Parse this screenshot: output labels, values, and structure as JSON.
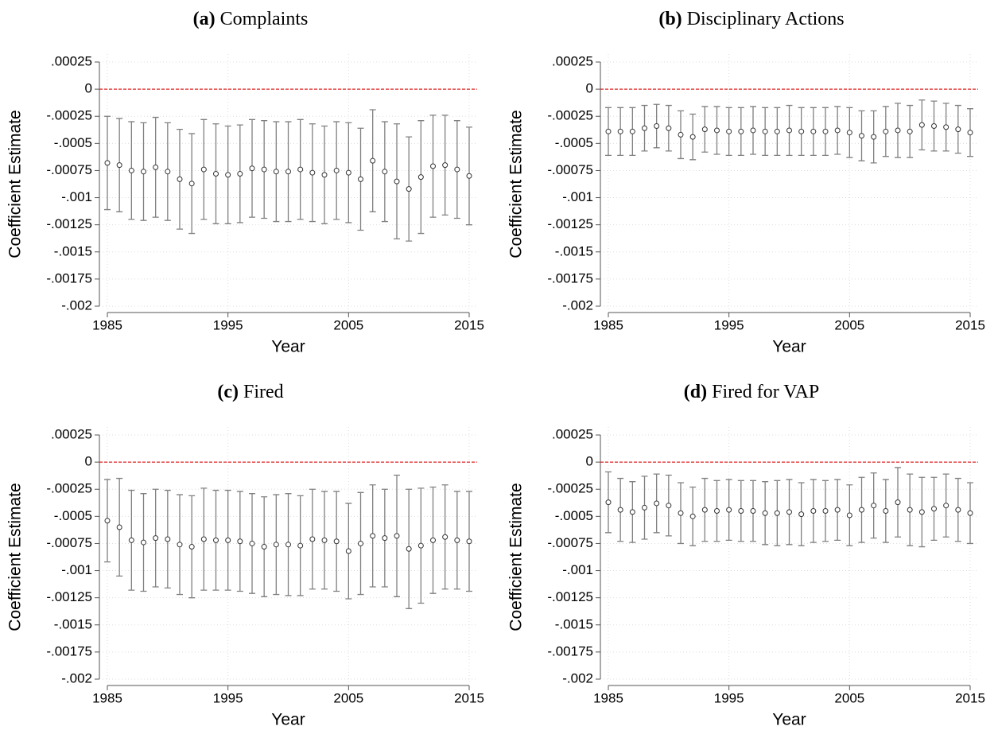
{
  "chart_data": [
    {
      "type": "errorbar",
      "label": "(a)",
      "title": "Complaints",
      "x_label": "Year",
      "y_label": "Coefficient Estimate",
      "xlim": [
        1985,
        2015
      ],
      "xticks": [
        1985,
        1995,
        2005,
        2015
      ],
      "ylim": [
        -0.002,
        0.00025
      ],
      "yticks": [
        {
          "value": 0.00025,
          "label": ".00025"
        },
        0,
        {
          "value": -0.00025,
          "label": "-.00025"
        },
        {
          "value": -0.0005,
          "label": "-.0005"
        },
        {
          "value": -0.00075,
          "label": "-.00075"
        },
        {
          "value": -0.001,
          "label": "-.001"
        },
        {
          "value": -0.00125,
          "label": "-.00125"
        },
        {
          "value": -0.0015,
          "label": "-.0015"
        },
        {
          "value": -0.00175,
          "label": "-.00175"
        },
        {
          "value": -0.002,
          "label": "-.002"
        }
      ],
      "grid": true,
      "refline": {
        "value": 0,
        "color": "#e02020"
      },
      "series": [
        {
          "color": "#808080",
          "x": [
            1985,
            1986,
            1987,
            1988,
            1989,
            1990,
            1991,
            1992,
            1993,
            1994,
            1995,
            1996,
            1997,
            1998,
            1999,
            2000,
            2001,
            2002,
            2003,
            2004,
            2005,
            2006,
            2007,
            2008,
            2009,
            2010,
            2011,
            2012,
            2013,
            2014,
            2015
          ],
          "values": [
            -0.00068,
            -0.0007,
            -0.00075,
            -0.00076,
            -0.00072,
            -0.00076,
            -0.00083,
            -0.00087,
            -0.00074,
            -0.00078,
            -0.00079,
            -0.00078,
            -0.00073,
            -0.00074,
            -0.00076,
            -0.00076,
            -0.00074,
            -0.00077,
            -0.00079,
            -0.00075,
            -0.00077,
            -0.00083,
            -0.00066,
            -0.00076,
            -0.00085,
            -0.00092,
            -0.00081,
            -0.00071,
            -0.0007,
            -0.00074,
            -0.0008
          ],
          "errors": [
            0.00043,
            0.00043,
            0.00045,
            0.00045,
            0.00046,
            0.00045,
            0.00046,
            0.00046,
            0.00046,
            0.00046,
            0.00045,
            0.00045,
            0.00045,
            0.00045,
            0.00046,
            0.00046,
            0.00046,
            0.00045,
            0.00045,
            0.00045,
            0.00046,
            0.00047,
            0.00047,
            0.00046,
            0.00053,
            0.00048,
            0.00052,
            0.00047,
            0.00046,
            0.00045,
            0.00045
          ]
        }
      ]
    },
    {
      "type": "errorbar",
      "label": "(b)",
      "title": "Disciplinary Actions",
      "x_label": "Year",
      "y_label": "Coefficient Estimate",
      "xlim": [
        1985,
        2015
      ],
      "xticks": [
        1985,
        1995,
        2005,
        2015
      ],
      "ylim": [
        -0.002,
        0.00025
      ],
      "yticks": [
        {
          "value": 0.00025,
          "label": ".00025"
        },
        0,
        {
          "value": -0.00025,
          "label": "-.00025"
        },
        {
          "value": -0.0005,
          "label": "-.0005"
        },
        {
          "value": -0.00075,
          "label": "-.00075"
        },
        {
          "value": -0.001,
          "label": "-.001"
        },
        {
          "value": -0.00125,
          "label": "-.00125"
        },
        {
          "value": -0.0015,
          "label": "-.0015"
        },
        {
          "value": -0.00175,
          "label": "-.00175"
        },
        {
          "value": -0.002,
          "label": "-.002"
        }
      ],
      "grid": true,
      "refline": {
        "value": 0,
        "color": "#e02020"
      },
      "series": [
        {
          "color": "#808080",
          "x": [
            1985,
            1986,
            1987,
            1988,
            1989,
            1990,
            1991,
            1992,
            1993,
            1994,
            1995,
            1996,
            1997,
            1998,
            1999,
            2000,
            2001,
            2002,
            2003,
            2004,
            2005,
            2006,
            2007,
            2008,
            2009,
            2010,
            2011,
            2012,
            2013,
            2014,
            2015
          ],
          "values": [
            -0.00039,
            -0.00039,
            -0.00039,
            -0.00036,
            -0.00034,
            -0.00036,
            -0.00042,
            -0.00044,
            -0.00037,
            -0.00038,
            -0.00039,
            -0.00039,
            -0.00038,
            -0.00039,
            -0.00039,
            -0.00038,
            -0.00039,
            -0.00039,
            -0.00039,
            -0.00038,
            -0.0004,
            -0.00043,
            -0.00044,
            -0.00039,
            -0.00038,
            -0.00039,
            -0.00033,
            -0.00034,
            -0.00035,
            -0.00037,
            -0.0004
          ],
          "errors": [
            0.00022,
            0.00022,
            0.00022,
            0.00021,
            0.0002,
            0.00021,
            0.00022,
            0.00021,
            0.00021,
            0.00022,
            0.00022,
            0.00022,
            0.00022,
            0.00022,
            0.00022,
            0.00023,
            0.00022,
            0.00022,
            0.00022,
            0.00022,
            0.00023,
            0.00023,
            0.00024,
            0.00023,
            0.00025,
            0.00024,
            0.00023,
            0.00023,
            0.00022,
            0.00022,
            0.00022
          ]
        }
      ]
    },
    {
      "type": "errorbar",
      "label": "(c)",
      "title": "Fired",
      "x_label": "Year",
      "y_label": "Coefficient Estimate",
      "xlim": [
        1985,
        2015
      ],
      "xticks": [
        1985,
        1995,
        2005,
        2015
      ],
      "ylim": [
        -0.002,
        0.00025
      ],
      "yticks": [
        {
          "value": 0.00025,
          "label": ".00025"
        },
        0,
        {
          "value": -0.00025,
          "label": "-.00025"
        },
        {
          "value": -0.0005,
          "label": "-.0005"
        },
        {
          "value": -0.00075,
          "label": "-.00075"
        },
        {
          "value": -0.001,
          "label": "-.001"
        },
        {
          "value": -0.00125,
          "label": "-.00125"
        },
        {
          "value": -0.0015,
          "label": "-.0015"
        },
        {
          "value": -0.00175,
          "label": "-.00175"
        },
        {
          "value": -0.002,
          "label": "-.002"
        }
      ],
      "grid": true,
      "refline": {
        "value": 0,
        "color": "#e02020"
      },
      "series": [
        {
          "color": "#808080",
          "x": [
            1985,
            1986,
            1987,
            1988,
            1989,
            1990,
            1991,
            1992,
            1993,
            1994,
            1995,
            1996,
            1997,
            1998,
            1999,
            2000,
            2001,
            2002,
            2003,
            2004,
            2005,
            2006,
            2007,
            2008,
            2009,
            2010,
            2011,
            2012,
            2013,
            2014,
            2015
          ],
          "values": [
            -0.00054,
            -0.0006,
            -0.00072,
            -0.00074,
            -0.0007,
            -0.00071,
            -0.00076,
            -0.00078,
            -0.00071,
            -0.00072,
            -0.00072,
            -0.00073,
            -0.00075,
            -0.00078,
            -0.00076,
            -0.00076,
            -0.00077,
            -0.00071,
            -0.00072,
            -0.00073,
            -0.00082,
            -0.00075,
            -0.00068,
            -0.0007,
            -0.00068,
            -0.0008,
            -0.00077,
            -0.00072,
            -0.00069,
            -0.00072,
            -0.00073
          ],
          "errors": [
            0.00038,
            0.00045,
            0.00046,
            0.00045,
            0.00045,
            0.00045,
            0.00046,
            0.00047,
            0.00047,
            0.00046,
            0.00046,
            0.00046,
            0.00046,
            0.00046,
            0.00046,
            0.00047,
            0.00046,
            0.00046,
            0.00045,
            0.00046,
            0.00044,
            0.00047,
            0.00047,
            0.00045,
            0.00056,
            0.00055,
            0.00053,
            0.00049,
            0.00048,
            0.00045,
            0.00046
          ]
        }
      ]
    },
    {
      "type": "errorbar",
      "label": "(d)",
      "title": "Fired for VAP",
      "x_label": "Year",
      "y_label": "Coefficient Estimate",
      "xlim": [
        1985,
        2015
      ],
      "xticks": [
        1985,
        1995,
        2005,
        2015
      ],
      "ylim": [
        -0.002,
        0.00025
      ],
      "yticks": [
        {
          "value": 0.00025,
          "label": ".00025"
        },
        0,
        {
          "value": -0.00025,
          "label": "-.00025"
        },
        {
          "value": -0.0005,
          "label": "-.0005"
        },
        {
          "value": -0.00075,
          "label": "-.00075"
        },
        {
          "value": -0.001,
          "label": "-.001"
        },
        {
          "value": -0.00125,
          "label": "-.00125"
        },
        {
          "value": -0.0015,
          "label": "-.0015"
        },
        {
          "value": -0.00175,
          "label": "-.00175"
        },
        {
          "value": -0.002,
          "label": "-.002"
        }
      ],
      "grid": true,
      "refline": {
        "value": 0,
        "color": "#e02020"
      },
      "series": [
        {
          "color": "#808080",
          "x": [
            1985,
            1986,
            1987,
            1988,
            1989,
            1990,
            1991,
            1992,
            1993,
            1994,
            1995,
            1996,
            1997,
            1998,
            1999,
            2000,
            2001,
            2002,
            2003,
            2004,
            2005,
            2006,
            2007,
            2008,
            2009,
            2010,
            2011,
            2012,
            2013,
            2014,
            2015
          ],
          "values": [
            -0.00037,
            -0.00044,
            -0.00046,
            -0.00042,
            -0.00038,
            -0.0004,
            -0.00047,
            -0.0005,
            -0.00044,
            -0.00045,
            -0.00044,
            -0.00045,
            -0.00045,
            -0.00047,
            -0.00047,
            -0.00046,
            -0.00048,
            -0.00045,
            -0.00045,
            -0.00044,
            -0.00049,
            -0.00044,
            -0.0004,
            -0.00045,
            -0.00037,
            -0.00044,
            -0.00046,
            -0.00043,
            -0.0004,
            -0.00044,
            -0.00047
          ],
          "errors": [
            0.00028,
            0.00029,
            0.00028,
            0.00029,
            0.00027,
            0.00028,
            0.00028,
            0.00027,
            0.00029,
            0.00028,
            0.00028,
            0.00028,
            0.00028,
            0.00029,
            0.0003,
            0.0003,
            0.00029,
            0.00029,
            0.00028,
            0.00028,
            0.00028,
            0.0003,
            0.0003,
            0.00029,
            0.00032,
            0.00033,
            0.00032,
            0.00029,
            0.00029,
            0.00029,
            0.00028
          ]
        }
      ]
    }
  ]
}
